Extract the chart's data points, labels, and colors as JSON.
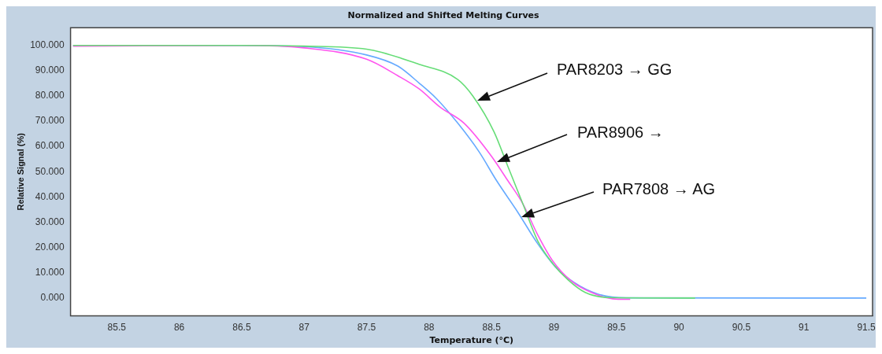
{
  "chart_data": {
    "type": "line",
    "title": "Normalized and Shifted Melting Curves",
    "xlabel": "Temperature (°C)",
    "ylabel": "Relative Signal (%)",
    "xlim": [
      85.13,
      91.55
    ],
    "ylim": [
      -7,
      107
    ],
    "xticks": [
      85.5,
      86,
      86.5,
      87,
      87.5,
      88,
      88.5,
      89,
      89.5,
      90,
      90.5,
      91,
      91.5
    ],
    "yticks": [
      {
        "value": 0,
        "label": "0.000"
      },
      {
        "value": 10,
        "label": "10.000"
      },
      {
        "value": 20,
        "label": "20.000"
      },
      {
        "value": 30,
        "label": "30.000"
      },
      {
        "value": 40,
        "label": "40.000"
      },
      {
        "value": 50,
        "label": "50.000"
      },
      {
        "value": 60,
        "label": "60.000"
      },
      {
        "value": 70,
        "label": "70.000"
      },
      {
        "value": 80,
        "label": "80.000"
      },
      {
        "value": 90,
        "label": "90.000"
      },
      {
        "value": 100,
        "label": "100.000"
      }
    ],
    "grid": false,
    "legend": false,
    "marker": "none",
    "line_style": "solid",
    "series": [
      {
        "color": "#66dd77",
        "x": [
          85.15,
          86.5,
          87,
          87.5,
          87.92,
          88.23,
          88.35,
          88.52,
          88.63,
          88.75,
          88.87,
          88.99,
          89.11,
          89.25,
          89.44,
          90.13
        ],
        "values": [
          100,
          100,
          99.7,
          98.5,
          92.5,
          86.5,
          80,
          65.8,
          52.2,
          37.4,
          22.6,
          13.7,
          7.3,
          2.2,
          0.2,
          0
        ]
      },
      {
        "color": "#ff55ee",
        "x": [
          85.15,
          86.5,
          87,
          87.5,
          87.75,
          87.92,
          88.09,
          88.28,
          88.5,
          88.63,
          88.75,
          88.87,
          88.99,
          89.14,
          89.3,
          89.47,
          89.61
        ],
        "values": [
          99.7,
          100,
          99,
          94.5,
          88,
          82.8,
          75.5,
          69.2,
          56.1,
          46.5,
          37.4,
          25,
          14.7,
          6.7,
          2.2,
          -0.3,
          -0.5
        ]
      },
      {
        "color": "#66aaff",
        "x": [
          85.15,
          86.5,
          87,
          87.5,
          87.75,
          87.92,
          88.06,
          88.23,
          88.4,
          88.54,
          88.71,
          88.87,
          89.01,
          89.16,
          89.35,
          89.58,
          91.5
        ],
        "values": [
          100,
          100,
          99.5,
          96.2,
          91.8,
          85.1,
          78.9,
          69.2,
          57.9,
          46.5,
          34,
          21.5,
          12.4,
          6.2,
          1.6,
          0.1,
          0
        ]
      }
    ],
    "annotations": [
      "PAR8203 → GG",
      "PAR8906 →",
      "PAR7808 → AG"
    ]
  }
}
